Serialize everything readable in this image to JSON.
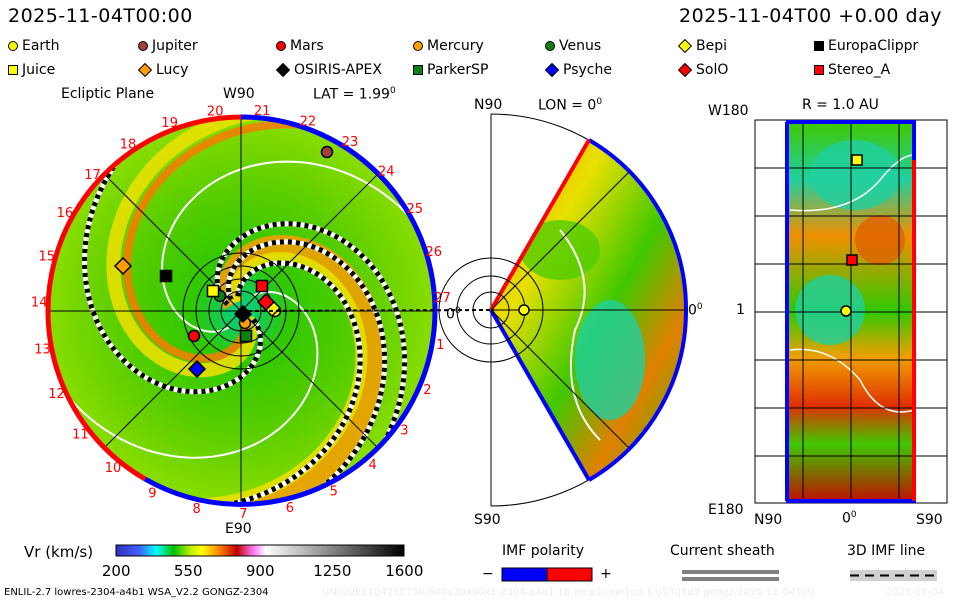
{
  "header": {
    "left_time": "2025-11-04T00:00",
    "right_time": "2025-11-04T00 +0.00 day"
  },
  "legend": [
    {
      "name": "Earth",
      "shape": "circle",
      "color": "#ffff00"
    },
    {
      "name": "Jupiter",
      "shape": "circle",
      "color": "#a0403a"
    },
    {
      "name": "Mars",
      "shape": "circle",
      "color": "#ff0000"
    },
    {
      "name": "Mercury",
      "shape": "circle",
      "color": "#ffa000"
    },
    {
      "name": "Venus",
      "shape": "circle",
      "color": "#108010"
    },
    {
      "name": "Bepi",
      "shape": "diamond",
      "color": "#ffff00"
    },
    {
      "name": "EuropaClippr",
      "shape": "square",
      "color": "#000000"
    },
    {
      "name": "Juice",
      "shape": "square",
      "color": "#ffff00"
    },
    {
      "name": "Lucy",
      "shape": "diamond",
      "color": "#ffa000"
    },
    {
      "name": "OSIRIS-APEX",
      "shape": "diamond",
      "color": "#000000"
    },
    {
      "name": "ParkerSP",
      "shape": "square",
      "color": "#108010"
    },
    {
      "name": "Psyche",
      "shape": "diamond",
      "color": "#0000ff"
    },
    {
      "name": "SolO",
      "shape": "diamond",
      "color": "#ff0000"
    },
    {
      "name": "Stereo_A",
      "shape": "square",
      "color": "#ff0000"
    }
  ],
  "ecliptic_panel": {
    "title": "Ecliptic Plane",
    "top_label": "W90",
    "bottom_label": "E90",
    "lat_label": "LAT = 1.99",
    "degree_mark": "0",
    "zero_label": "0",
    "sector_labels": [
      "1",
      "2",
      "3",
      "4",
      "5",
      "6",
      "7",
      "8",
      "9",
      "10",
      "11",
      "12",
      "13",
      "14",
      "15",
      "16",
      "17",
      "18",
      "19",
      "20",
      "21",
      "22",
      "23",
      "24",
      "25",
      "26",
      "27"
    ]
  },
  "meridional_panel": {
    "top_label": "N90",
    "bottom_label": "S90",
    "lon_label": "LON = 0",
    "degree_mark": "0",
    "zero_label": "0"
  },
  "radial_panel": {
    "title": "R = 1.0 AU",
    "top_label": "W180",
    "middle_label": "1",
    "bottom_label": "E180",
    "x_labels": [
      "N90",
      "0",
      "S90"
    ],
    "degree_mark": "0"
  },
  "colorbar": {
    "label": "Vr (km/s)",
    "ticks": [
      "200",
      "550",
      "900",
      "1250",
      "1600"
    ]
  },
  "imf_polarity": {
    "title": "IMF polarity",
    "minus": "−",
    "plus": "+",
    "negative_color": "#0000ff",
    "positive_color": "#ff0000"
  },
  "current_sheath": {
    "title": "Current sheath",
    "color": "#808080"
  },
  "imf_line": {
    "title": "3D IMF line"
  },
  "footer": {
    "model": "ENLIL-2.7 lowres-2304-a4b1 WSA_V2.2 GONGZ-2304",
    "run_id": "UNIQUE1104235756/640x30x90x1.2304-a4b1.16-mcp1umn1cd-1.g53q5d2.gongz-2025-11-04T00",
    "date": "2025-11-04"
  },
  "chart_data": {
    "type": "heatmap",
    "quantity": "Vr (km/s)",
    "colorbar_range": [
      200,
      1600
    ],
    "colorbar_ticks": [
      200,
      550,
      900,
      1250,
      1600
    ],
    "panels": [
      "Ecliptic Plane",
      "LON = 0",
      "R = 1.0 AU"
    ]
  }
}
